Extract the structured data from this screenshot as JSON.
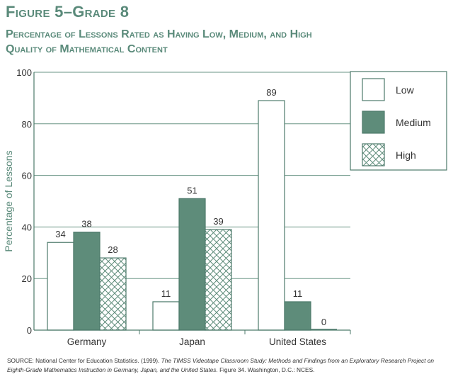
{
  "figure_title": "Figure 5–Grade 8",
  "figure_subtitle": "Percentage of Lessons Rated as Having Low, Medium, and High Quality of Mathematical Content",
  "source": {
    "part1": "SOURCE: National Center for Education Statistics. (1999).",
    "italic": "The TIMSS Videotape Classroom Study: Methods and Findings from an Exploratory Research Project on Eighth-Grade Mathematics Instruction in Germany, Japan, and the United States.",
    "part2": "Figure 34. Washington, D.C.: NCES."
  },
  "colors": {
    "accent": "#5a8a7a",
    "medium_fill": "#5e8c7a",
    "grid": "#6a9585",
    "axis": "#4d7a6b"
  },
  "chart_data": {
    "type": "bar",
    "title": "",
    "xlabel": "",
    "ylabel": "Percentage of Lessons",
    "ylim": [
      0,
      100
    ],
    "yticks": [
      0,
      20,
      40,
      60,
      80,
      100
    ],
    "grid": true,
    "legend_position": "top-right",
    "categories": [
      "Germany",
      "Japan",
      "United States"
    ],
    "series": [
      {
        "name": "Low",
        "values": [
          34,
          11,
          89
        ],
        "fill": "none"
      },
      {
        "name": "Medium",
        "values": [
          38,
          51,
          11
        ],
        "fill": "solid"
      },
      {
        "name": "High",
        "values": [
          28,
          39,
          0
        ],
        "fill": "crosshatch"
      }
    ]
  }
}
